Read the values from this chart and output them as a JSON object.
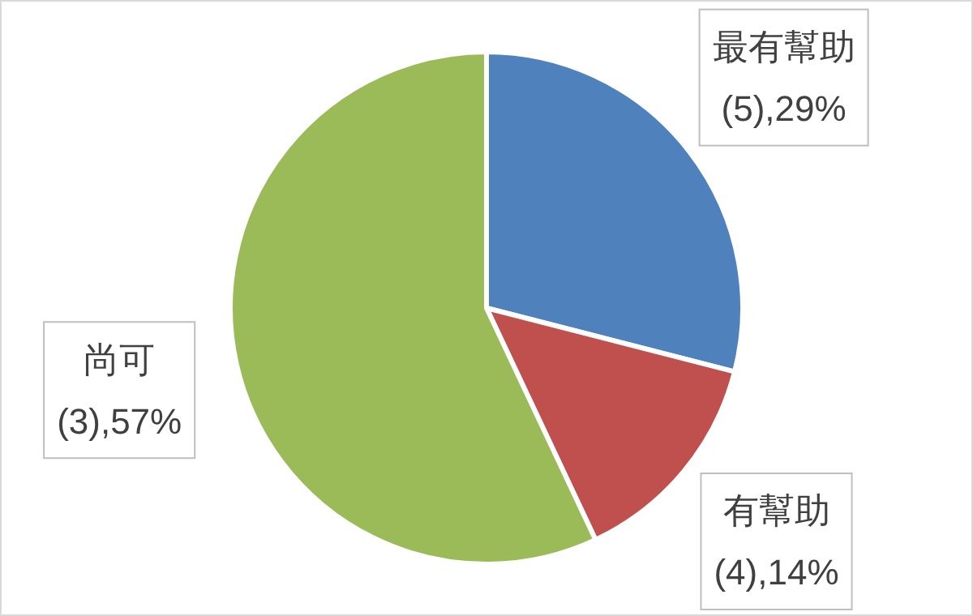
{
  "chart_data": {
    "type": "pie",
    "categories": [
      "最有幫助",
      "有幫助",
      "尚可"
    ],
    "values": [
      29,
      14,
      57
    ],
    "value_labels": [
      "(5),29%",
      "(4),14%",
      "(3),57%"
    ],
    "colors": [
      "#4f81bd",
      "#c0504d",
      "#9bbb59"
    ]
  }
}
